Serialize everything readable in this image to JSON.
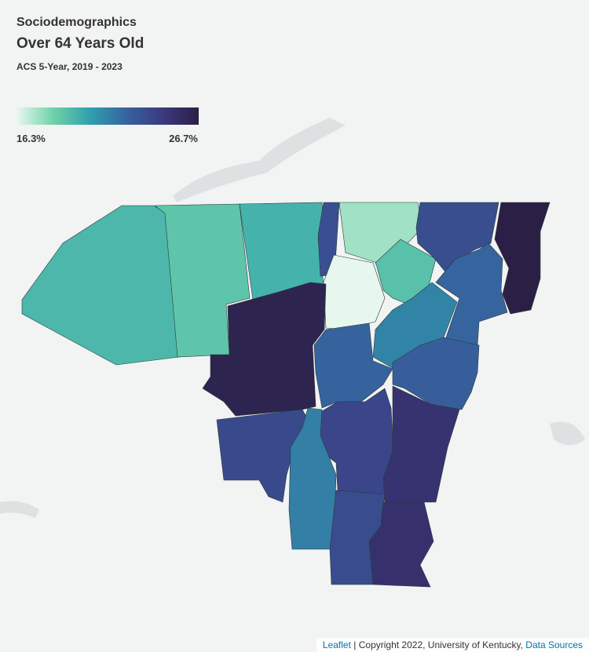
{
  "header": {
    "category": "Sociodemographics",
    "title": "Over 64 Years Old",
    "subtitle": "ACS 5-Year, 2019 - 2023"
  },
  "legend": {
    "min": {
      "value": 16.3,
      "label": "16.3%"
    },
    "max": {
      "value": 26.7,
      "label": "26.7%"
    },
    "colors": [
      "#e6f7ed",
      "#6fd1a8",
      "#2fa0ae",
      "#36639f",
      "#3b3a80",
      "#2b1f45"
    ]
  },
  "regions": {
    "values": [
      19.5,
      18.9,
      19.7,
      23.5,
      17.5,
      16.3,
      19.1,
      23.6,
      26.7,
      22.5,
      21.4,
      26.3,
      22.6,
      22.8,
      24.0,
      25.2,
      23.8,
      21.6,
      23.7,
      25.3
    ]
  },
  "attribution": {
    "link": "Leaflet",
    "text": "| Copyright 2022, University of Kentucky,",
    "sources": "Data Sources"
  }
}
